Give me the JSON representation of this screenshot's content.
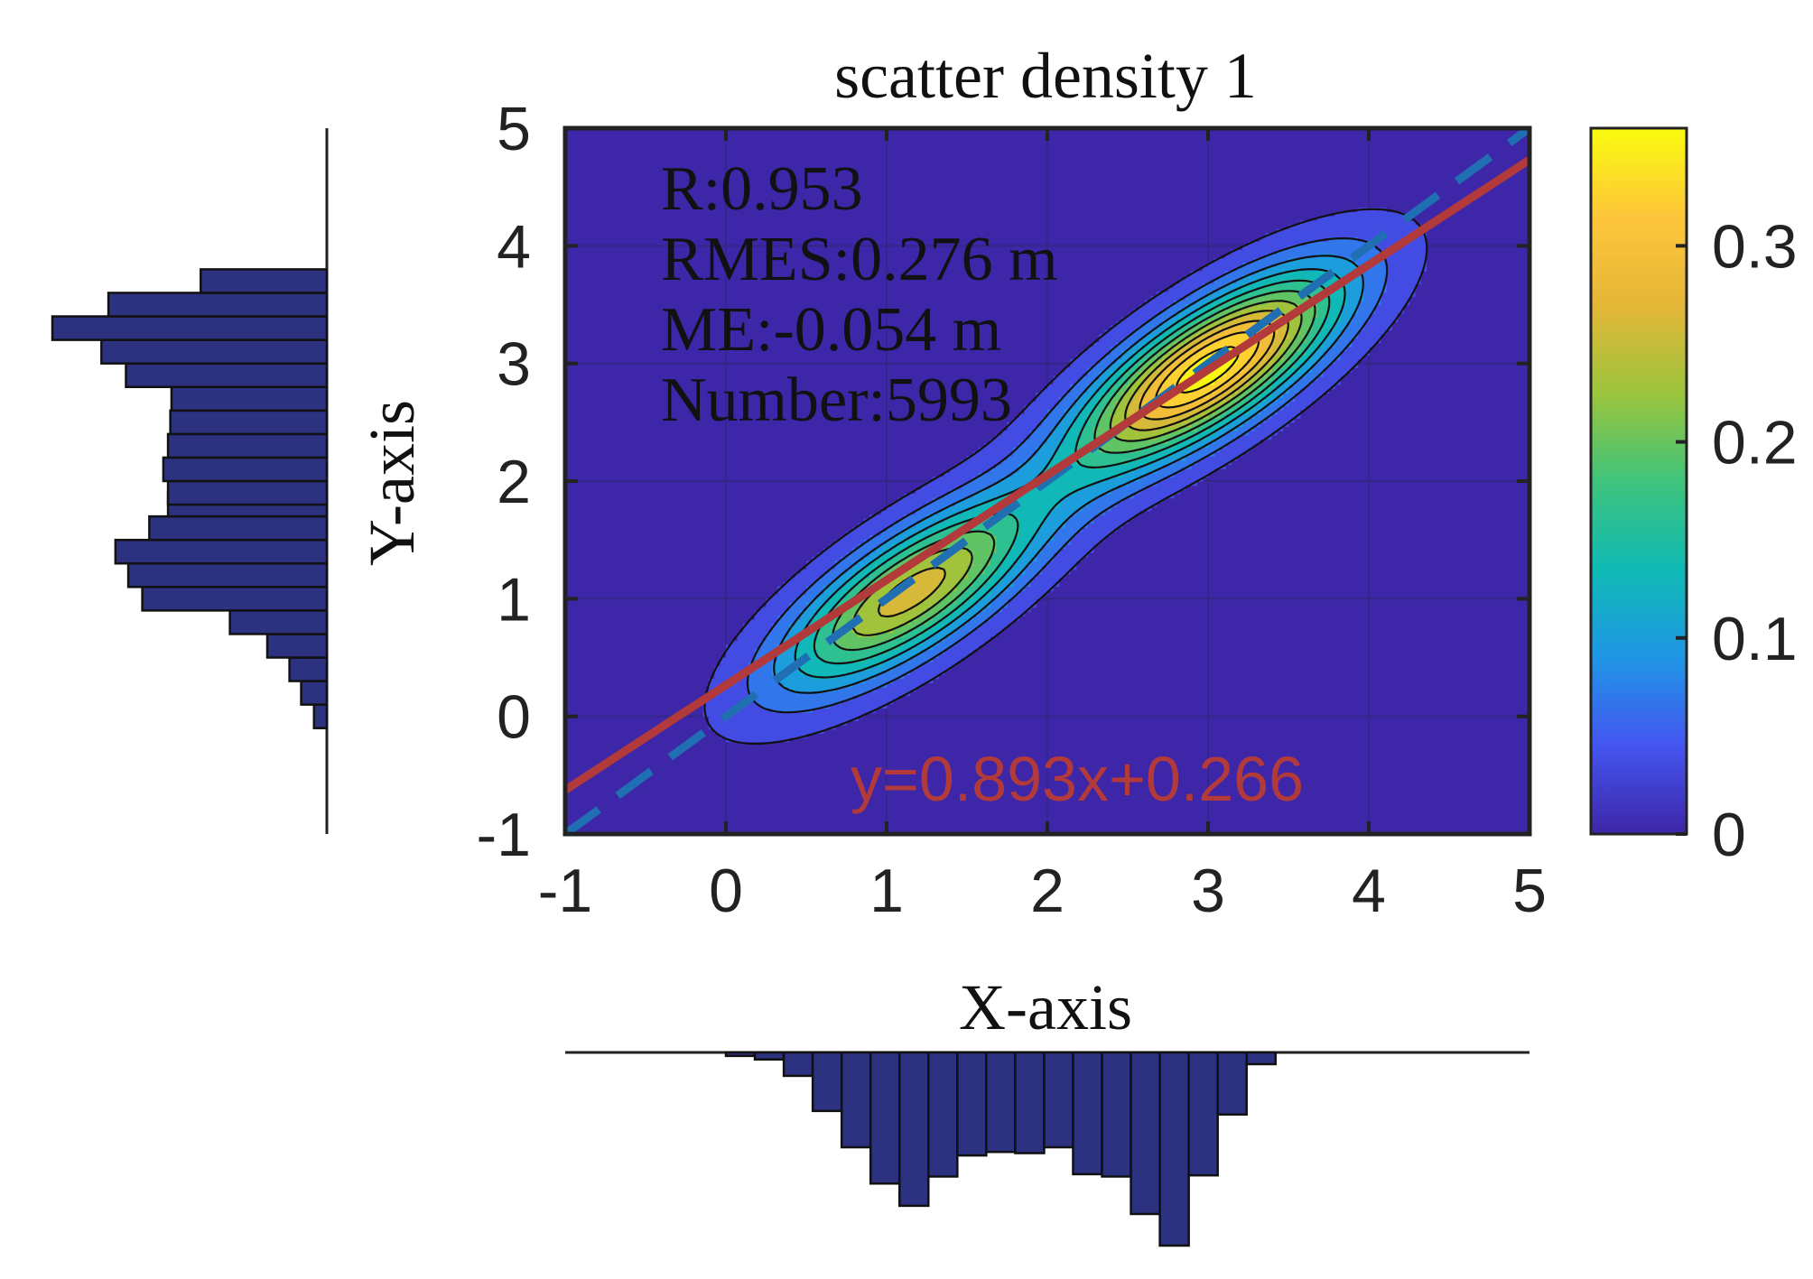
{
  "chart_data": {
    "type": "heatmap",
    "title": "scatter density 1",
    "xlabel": "X-axis",
    "ylabel": "Y-axis",
    "xlim": [
      -1,
      5
    ],
    "ylim": [
      -1,
      5
    ],
    "xticks": [
      "-1",
      "0",
      "1",
      "2",
      "3",
      "4",
      "5"
    ],
    "yticks": [
      "-1",
      "0",
      "1",
      "2",
      "3",
      "4",
      "5"
    ],
    "grid": true,
    "colorbar": {
      "range": [
        0,
        0.36
      ],
      "ticks": [
        "0",
        "0.1",
        "0.2",
        "0.3"
      ],
      "tick_values": [
        0,
        0.1,
        0.2,
        0.3
      ],
      "colormap": "parula",
      "colors": [
        "#3e26a8",
        "#4455f0",
        "#1f96e6",
        "#0fbab4",
        "#3fc47c",
        "#9cc43c",
        "#e6b638",
        "#fec63a",
        "#f9fb0e"
      ]
    },
    "background_color": "#3e26a8",
    "annotations": {
      "lines": [
        "R:0.953",
        "RMES:0.276 m",
        "ME:-0.054 m",
        "Number:5993"
      ],
      "fit_equation": "y=0.893x+0.266"
    },
    "fit_line": {
      "slope": 0.893,
      "intercept": 0.266,
      "color": "#b33a3a"
    },
    "reference_line": {
      "slope": 1,
      "intercept": 0,
      "color": "#1f6fb2",
      "style": "dashed"
    },
    "density_peaks": [
      {
        "x": 1.15,
        "y": 1.05,
        "peak": 0.26
      },
      {
        "x": 3.0,
        "y": 2.95,
        "peak": 0.36
      }
    ],
    "x_histogram": {
      "bin_width": 0.18,
      "bins_start": [
        0.0,
        0.18,
        0.36,
        0.54,
        0.72,
        0.9,
        1.08,
        1.26,
        1.44,
        1.62,
        1.8,
        1.98,
        2.16,
        2.34,
        2.52,
        2.7,
        2.88,
        3.06,
        3.24,
        3.42
      ],
      "counts": [
        3,
        6,
        20,
        50,
        81,
        112,
        131,
        106,
        88,
        85,
        86,
        81,
        104,
        106,
        138,
        165,
        105,
        53,
        10,
        0
      ],
      "bar_color": "#2c3280"
    },
    "y_histogram": {
      "bin_width": 0.2,
      "bins_start": [
        -0.1,
        0.1,
        0.3,
        0.5,
        0.7,
        0.9,
        1.1,
        1.3,
        1.5,
        1.7,
        1.8,
        2.0,
        2.2,
        2.4,
        2.6,
        2.8,
        3.0,
        3.2,
        3.4,
        3.6
      ],
      "counts": [
        11,
        22,
        32,
        51,
        83,
        158,
        170,
        181,
        152,
        136,
        136,
        140,
        136,
        134,
        133,
        172,
        193,
        235,
        187,
        108
      ],
      "bar_color": "#2c3280"
    }
  }
}
